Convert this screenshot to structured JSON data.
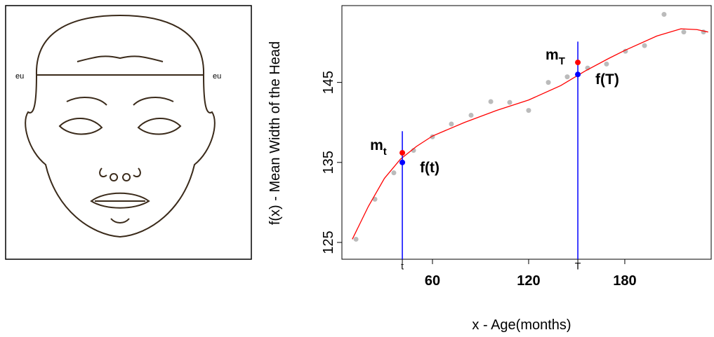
{
  "diagram": {
    "labels": [
      "eu",
      "eu"
    ]
  },
  "chart_data": {
    "type": "scatter",
    "xlabel": "x - Age(months)",
    "ylabel": "f(x) - Mean Width of the Head",
    "xlim": [
      3.5,
      233.9
    ],
    "ylim": [
      122.9,
      154.6
    ],
    "xticks": [
      60,
      120,
      180
    ],
    "yticks": [
      125,
      135,
      145
    ],
    "series": [
      {
        "color": "#bbbbbb",
        "kind": "points",
        "x": [
          12.3,
          24.1,
          35.9,
          48.2,
          60,
          71.8,
          84.1,
          96.4,
          108.2,
          120,
          132.3,
          144.1,
          156.8,
          168.6,
          180.4,
          192.3,
          204.5,
          216.8,
          229.1
        ],
        "values": [
          125.4,
          130.4,
          133.7,
          136.5,
          138.2,
          139.8,
          140.9,
          142.6,
          142.5,
          141.5,
          145.0,
          145.7,
          146.8,
          147.3,
          148.9,
          149.6,
          153.5,
          151.3,
          151.3
        ]
      },
      {
        "color": "#ff0000",
        "kind": "line",
        "x": [
          10,
          20,
          30,
          40,
          50,
          60,
          80,
          100,
          120,
          140,
          155,
          170,
          180,
          200,
          215,
          225,
          232
        ],
        "values": [
          125.4,
          129.5,
          133,
          135.4,
          137,
          138.3,
          140,
          141.5,
          142.8,
          144.6,
          146.4,
          148,
          149,
          150.8,
          151.7,
          151.6,
          151.3
        ]
      }
    ],
    "vlines": [
      {
        "x": 41.2,
        "ymax": 138.9,
        "label": "t",
        "color": "#0000ff"
      },
      {
        "x": 150.7,
        "ymax": 150.1,
        "label": "T",
        "color": "#0000ff"
      }
    ],
    "annotations": [
      {
        "label": "m",
        "subscript": "t",
        "x": 41.2,
        "y": 136.2,
        "color": "#ff0000",
        "side": "left"
      },
      {
        "label": "f(t)",
        "x": 41.2,
        "y": 135,
        "color": "#0000ff",
        "side": "right"
      },
      {
        "label": "m",
        "subscript": "T",
        "x": 150.7,
        "y": 147.5,
        "color": "#ff0000",
        "side": "left"
      },
      {
        "label": "f(T)",
        "x": 150.7,
        "y": 146.0,
        "color": "#0000ff",
        "side": "right"
      }
    ]
  }
}
